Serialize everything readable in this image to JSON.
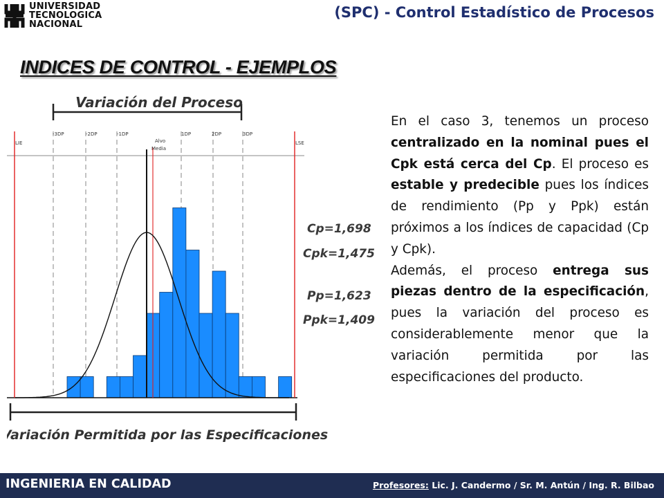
{
  "header": {
    "logo_icon": "utn-logo-icon",
    "university_lines": [
      "UNIVERSIDAD",
      "TECNOLOGICA",
      "NACIONAL"
    ],
    "title_prefix": "(SPC) - ",
    "title_main": "Control Estadístico de Procesos",
    "title_color": "#1f2f6f"
  },
  "section_title": "INDICES DE CONTROL - EJEMPLOS",
  "body": {
    "p1": {
      "t1": "En el caso 3, tenemos un proceso ",
      "b1": "centralizado en la nominal pues el Cpk está cerca del Cp",
      "t2": ". El proceso es ",
      "b2": "estable y predecible",
      "t3": " pues los índices de rendimiento (Pp y Ppk) están próximos a los índices de capacidad (Cp y Cpk)."
    },
    "p2": {
      "t1": "Además, el proceso ",
      "b1": "entrega sus piezas dentro de la especificación",
      "t2": ", pues la variación del proceso es considerablemente menor que la variación permitida por las especificaciones del producto."
    }
  },
  "chart_data": {
    "type": "bar",
    "description_type": "histogram with normal curve",
    "top_label": "Variación del Proceso",
    "bottom_label": "Variación Permitida por las Especificaciones",
    "spec_labels": {
      "lower": "LIE",
      "upper": "LSE"
    },
    "sigma_labels": [
      "-3DP",
      "-2DP",
      "-1DP",
      "1DP",
      "2DP",
      "3DP"
    ],
    "center_labels": [
      "Alvo",
      "Media"
    ],
    "indices": [
      "Cp=1,698",
      "Cpk=1,475",
      "Pp=1,623",
      "Ppk=1,409"
    ],
    "values": [
      1,
      1,
      0,
      1,
      1,
      2,
      4,
      5,
      9,
      7,
      4,
      6,
      4,
      1,
      1,
      0,
      1
    ],
    "ylim": [
      0,
      10
    ],
    "bar_color": "#1a8cff",
    "spec_color": "#e02020",
    "curve_color": "#111111"
  },
  "footer": {
    "left": "INGENIERIA EN CALIDAD",
    "prof_label": "Profesores:",
    "prof_names": " Lic. J. Candermo / Sr. M. Antún / Ing. R. Bilbao",
    "bg_color": "#1f2d52"
  }
}
